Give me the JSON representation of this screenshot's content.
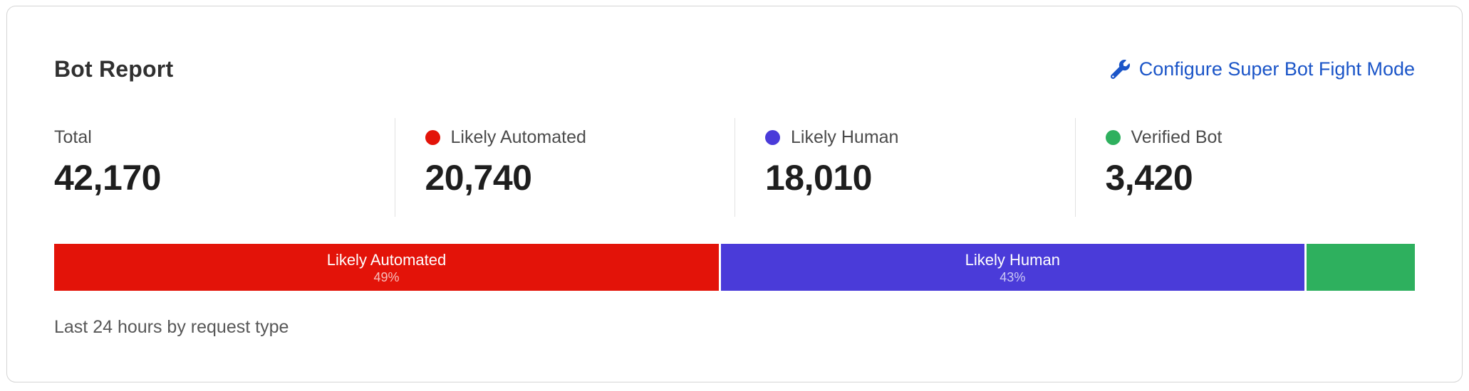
{
  "card": {
    "title": "Bot Report",
    "action": {
      "label": "Configure Super Bot Fight Mode",
      "icon": "wrench-icon"
    },
    "stats": [
      {
        "label": "Total",
        "value": "42,170"
      },
      {
        "label": "Likely Automated",
        "value": "20,740",
        "dot_color": "#e31309"
      },
      {
        "label": "Likely Human",
        "value": "18,010",
        "dot_color": "#4a3bd9"
      },
      {
        "label": "Verified Bot",
        "value": "3,420",
        "dot_color": "#2eb05e"
      }
    ],
    "footnote": "Last 24 hours by request type"
  },
  "colors": {
    "link_blue": "#1b55c8",
    "likely_automated_red": "#e31309",
    "likely_human_indigo": "#4a3bd9",
    "verified_bot_green": "#2eb05e",
    "card_border": "#d4d4d4"
  },
  "chart_data": {
    "type": "bar",
    "variant": "stacked-horizontal",
    "title": "Bot Report",
    "caption": "Last 24 hours by request type",
    "total": 42170,
    "segments": [
      {
        "label": "Likely Automated",
        "value": 20740,
        "percent": 49,
        "percent_label": "49%",
        "color": "#e31309"
      },
      {
        "label": "Likely Human",
        "value": 18010,
        "percent": 43,
        "percent_label": "43%",
        "color": "#4a3bd9"
      },
      {
        "label": "",
        "value": 3420,
        "percent": 8,
        "percent_label": "",
        "color": "#2eb05e",
        "series": "Verified Bot"
      }
    ]
  }
}
